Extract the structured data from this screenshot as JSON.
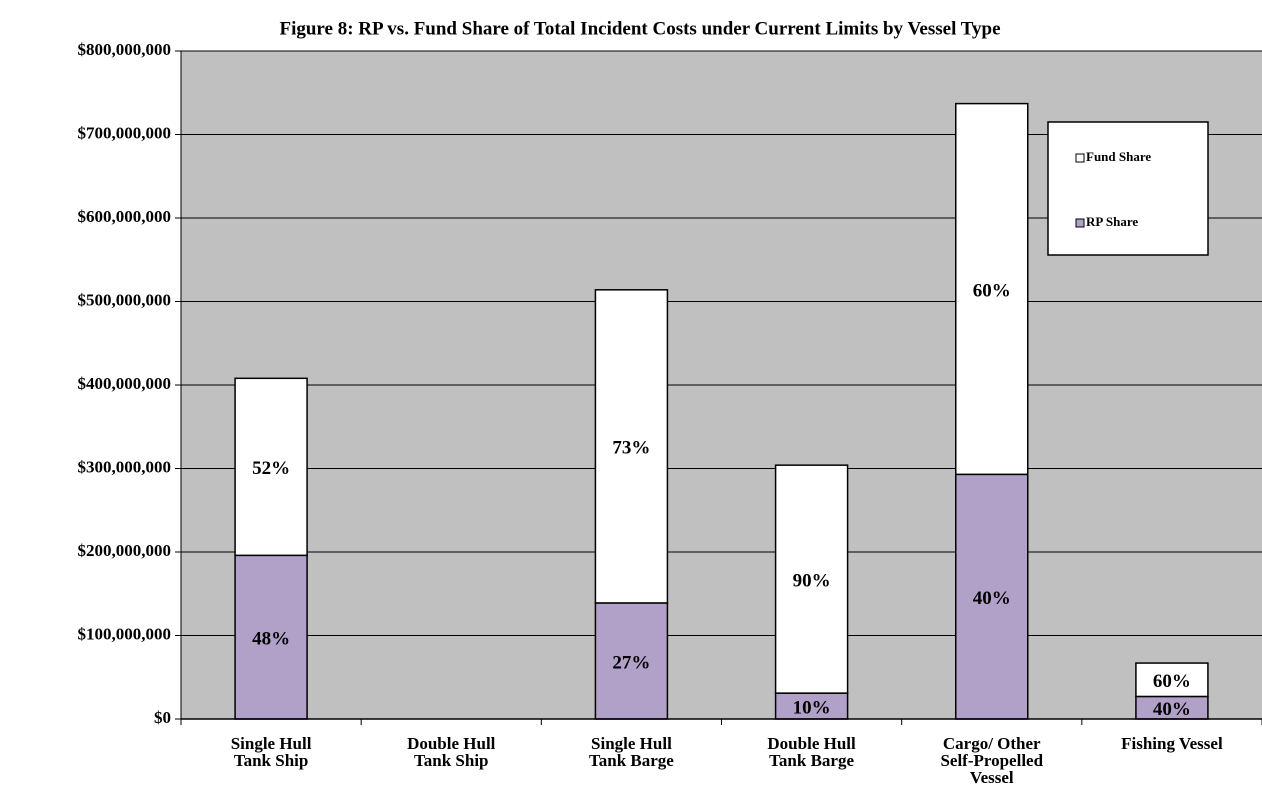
{
  "chart_data": {
    "type": "stacked_bar",
    "title": "Figure 8: RP vs. Fund Share of Total Incident Costs under Current Limits by Vessel Type",
    "categories": [
      [
        "Single Hull",
        "Tank Ship"
      ],
      [
        "Double Hull",
        "Tank Ship"
      ],
      [
        "Single Hull",
        "Tank Barge"
      ],
      [
        "Double Hull",
        "Tank Barge"
      ],
      [
        "Cargo/ Other",
        "Self-Propelled",
        "Vessel"
      ],
      [
        "Fishing Vessel"
      ]
    ],
    "series": [
      {
        "name": "RP Share",
        "color": "#b1a0c7",
        "values": [
          196000000,
          0,
          139000000,
          31000000,
          293000000,
          27000000
        ],
        "share_labels": [
          "48%",
          null,
          "27%",
          "10%",
          "40%",
          "40%"
        ]
      },
      {
        "name": "Fund Share",
        "color": "#ffffff",
        "values": [
          212000000,
          0,
          375000000,
          273000000,
          444000000,
          40000000
        ],
        "share_labels": [
          "52%",
          null,
          "73%",
          "90%",
          "60%",
          "60%"
        ]
      }
    ],
    "ylim": [
      0,
      800000000
    ],
    "yticks": [
      {
        "value": 0,
        "label": "$0"
      },
      {
        "value": 100000000,
        "label": "$100,000,000"
      },
      {
        "value": 200000000,
        "label": "$200,000,000"
      },
      {
        "value": 300000000,
        "label": "$300,000,000"
      },
      {
        "value": 400000000,
        "label": "$400,000,000"
      },
      {
        "value": 500000000,
        "label": "$500,000,000"
      },
      {
        "value": 600000000,
        "label": "$600,000,000"
      },
      {
        "value": 700000000,
        "label": "$700,000,000"
      },
      {
        "value": 800000000,
        "label": "$800,000,000"
      }
    ],
    "grid": true,
    "legend": "upper right"
  }
}
